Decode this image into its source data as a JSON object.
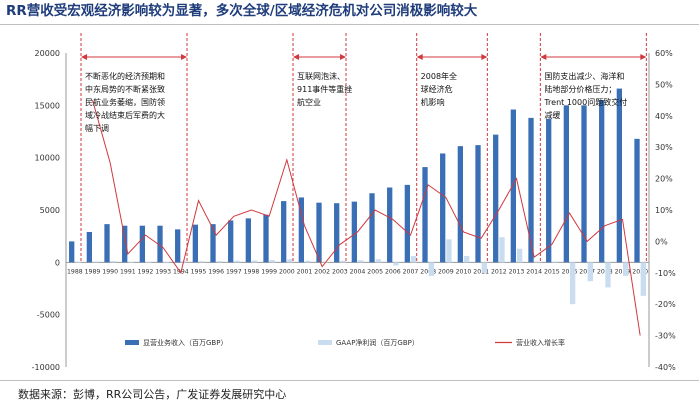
{
  "title": "RR营收受宏观经济影响较为显著，多次全球/区域经济危机对公司消极影响较大",
  "source": "数据来源：彭博，RR公司公告，广发证券发展研究中心",
  "chart_data": {
    "type": "bar",
    "categories": [
      "1988",
      "1989",
      "1990",
      "1991",
      "1992",
      "1993",
      "1994",
      "1995",
      "1996",
      "1997",
      "1998",
      "1999",
      "2000",
      "2001",
      "2002",
      "2003",
      "2004",
      "2005",
      "2006",
      "2007",
      "2008",
      "2009",
      "2010",
      "2011",
      "2012",
      "2013",
      "2014",
      "2015",
      "2016",
      "2017",
      "2018",
      "2019",
      "2020"
    ],
    "series": [
      {
        "name": "显营业务收入（百万GBP）",
        "type": "bar",
        "axis": "left",
        "color": "#3a6fb5",
        "values": [
          2000,
          2900,
          3650,
          3500,
          3500,
          3500,
          3150,
          3600,
          3650,
          4000,
          4200,
          4550,
          5850,
          6200,
          5700,
          5650,
          5800,
          6600,
          7150,
          7400,
          9100,
          10400,
          11100,
          11200,
          12200,
          14600,
          13800,
          13700,
          15000,
          15000,
          15500,
          16600,
          11800
        ]
      },
      {
        "name": "GAAP净利润（百万GBP）",
        "type": "bar",
        "axis": "left",
        "color": "#c9dcf0",
        "values": [
          40,
          80,
          120,
          -60,
          20,
          -80,
          100,
          110,
          120,
          160,
          180,
          220,
          290,
          160,
          -20,
          150,
          200,
          300,
          -300,
          600,
          -1300,
          2200,
          600,
          -1000,
          2400,
          1300,
          60,
          80,
          -4000,
          -1800,
          -2400,
          -1300,
          -3200
        ]
      },
      {
        "name": "营业收入增长率",
        "type": "line",
        "axis": "right",
        "color": "#d0393e",
        "values": [
          null,
          45,
          25,
          -4,
          2,
          -2,
          -10,
          13,
          2,
          8,
          10,
          8,
          26,
          5,
          -8,
          -1,
          3,
          10,
          7,
          2,
          18,
          14,
          3,
          1,
          10,
          20,
          -5,
          -1,
          9,
          0,
          5,
          7,
          -30
        ]
      }
    ],
    "ylim_left": [
      -10000,
      20000
    ],
    "yticks_left": [
      "20000",
      "15000",
      "10000",
      "5000",
      "0",
      "-5000",
      "-10000"
    ],
    "ylim_right": [
      -40,
      60
    ],
    "yticks_right": [
      "60%",
      "50%",
      "40%",
      "30%",
      "20%",
      "10%",
      "0%",
      "-10%",
      "-20%",
      "-30%",
      "-40%"
    ],
    "legend_position": "bottom",
    "grid": false,
    "annotations": [
      {
        "from": "1988",
        "to": "1994",
        "text": [
          "不断恶化的经济预期和",
          "中东局势的不断紧张致",
          "民航业务萎缩，国防领",
          "域冷战结束后军费的大",
          "幅下调"
        ]
      },
      {
        "from": "2000",
        "to": "2003",
        "text": [
          "互联网泡沫、",
          "911事件等重挫",
          "航空业"
        ]
      },
      {
        "from": "2007",
        "to": "2011",
        "text": [
          "2008年全",
          "球经济危",
          "机影响"
        ]
      },
      {
        "from": "2014",
        "to": "2020",
        "text": [
          "国防支出减少、海洋和",
          "陆地部分价格压力；",
          "Trent 1000问题致交付",
          "减缓"
        ]
      }
    ]
  }
}
